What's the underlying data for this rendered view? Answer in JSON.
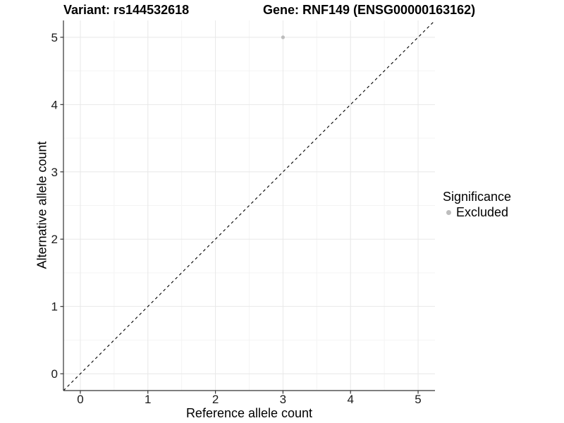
{
  "chart_data": {
    "type": "scatter",
    "title_left": "Variant: rs144532618",
    "title_right": "Gene: RNF149 (ENSG00000163162)",
    "xlabel": "Reference allele count",
    "ylabel": "Alternative allele count",
    "xlim": [
      -0.25,
      5.25
    ],
    "ylim": [
      -0.25,
      5.25
    ],
    "x_ticks": [
      0,
      1,
      2,
      3,
      4,
      5
    ],
    "y_ticks": [
      0,
      1,
      2,
      3,
      4,
      5
    ],
    "grid": "major+minor",
    "reference_line": {
      "type": "identity",
      "style": "dashed",
      "color": "#000000"
    },
    "series": [
      {
        "name": "Excluded",
        "marker": "circle",
        "color": "#bdbdbd",
        "points": [
          [
            3,
            5
          ]
        ]
      }
    ],
    "legend": {
      "title": "Significance",
      "position": "right",
      "items": [
        {
          "label": "Excluded",
          "color": "#bdbdbd",
          "marker": "circle"
        }
      ]
    }
  },
  "colors": {
    "background": "#ffffff",
    "grid_major": "#e8e8e8",
    "grid_minor": "#f4f4f4",
    "axis_line": "#333333",
    "tick_mark": "#333333",
    "tick_text": "#1a1a1a",
    "point": "#bdbdbd"
  }
}
